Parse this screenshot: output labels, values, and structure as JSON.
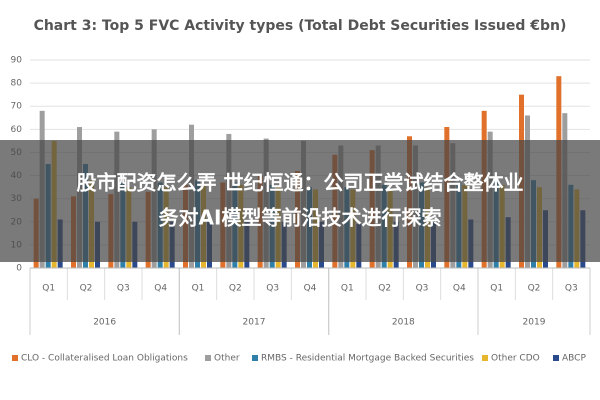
{
  "chart_data": {
    "type": "bar",
    "title": "Chart 3: Top 5 FVC Activity types (Total Debt Securities Issued €bn)",
    "category_groups": [
      {
        "name": "2016",
        "categories": [
          "Q1",
          "Q2",
          "Q3",
          "Q4"
        ]
      },
      {
        "name": "2017",
        "categories": [
          "Q1",
          "Q2",
          "Q3",
          "Q4"
        ]
      },
      {
        "name": "2018",
        "categories": [
          "Q1",
          "Q2",
          "Q3",
          "Q4"
        ]
      },
      {
        "name": "2019",
        "categories": [
          "Q1",
          "Q2",
          "Q3"
        ]
      }
    ],
    "series": [
      {
        "name": "CLO - Collateralised Loan Obligations",
        "color": "#e0702a",
        "values": [
          30,
          31,
          32,
          33,
          36,
          37,
          40,
          42,
          49,
          51,
          57,
          61,
          68,
          75,
          83
        ]
      },
      {
        "name": "Other",
        "color": "#9e9e9e",
        "values": [
          68,
          61,
          59,
          60,
          62,
          58,
          56,
          55,
          53,
          53,
          53,
          54,
          59,
          66,
          67
        ]
      },
      {
        "name": "RMBS - Residential Mortgage Backed Securities",
        "color": "#2f7fa8",
        "values": [
          45,
          45,
          37,
          37,
          38,
          37,
          36,
          35,
          35,
          36,
          37,
          37,
          38,
          38,
          36
        ]
      },
      {
        "name": "Other CDO",
        "color": "#e6b62e",
        "values": [
          55,
          38,
          35,
          35,
          36,
          36,
          35,
          34,
          34,
          34,
          35,
          36,
          36,
          35,
          34
        ]
      },
      {
        "name": "ABCP",
        "color": "#2a4a8c",
        "values": [
          21,
          20,
          20,
          20,
          21,
          21,
          20,
          20,
          19,
          20,
          20,
          21,
          22,
          25,
          25
        ]
      }
    ],
    "ylim": [
      0,
      90
    ],
    "yticks": [
      0,
      10,
      20,
      30,
      40,
      50,
      60,
      70,
      80,
      90
    ],
    "grid": true
  },
  "overlay": {
    "lines": [
      "股市配资怎么弄 世纪恒通：公司正尝试结合整体业",
      "务对AI模型等前沿技术进行探索"
    ]
  }
}
